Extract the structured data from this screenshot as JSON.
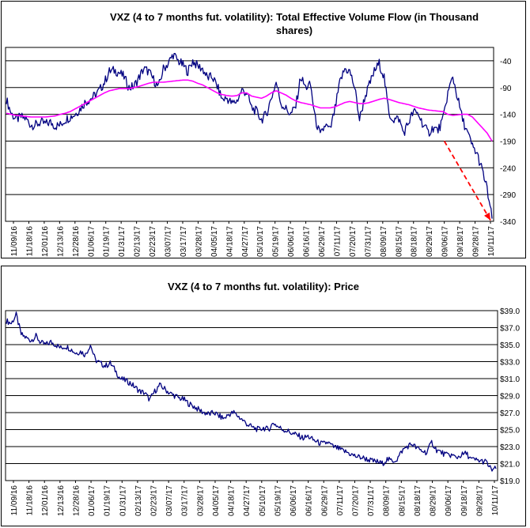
{
  "chart_data": [
    {
      "type": "line",
      "title": "VXZ (4 to 7 months fut. volatility): Total Effective Volume Flow (in Thousand shares)",
      "xlabel": "",
      "ylabel": "",
      "ylim": [
        -340,
        -15
      ],
      "yticks": [
        -40,
        -90,
        -140,
        -190,
        -240,
        -290,
        -340
      ],
      "x_tick_labels": [
        "11/09/16",
        "11/18/16",
        "12/01/16",
        "12/13/16",
        "12/28/16",
        "01/06/17",
        "01/19/17",
        "01/31/17",
        "02/13/17",
        "02/23/17",
        "03/07/17",
        "03/17/17",
        "03/28/17",
        "04/05/17",
        "04/18/17",
        "04/27/17",
        "05/10/17",
        "05/19/17",
        "06/06/17",
        "06/16/17",
        "06/29/17",
        "07/11/17",
        "07/20/17",
        "07/31/17",
        "08/09/17",
        "08/15/17",
        "08/18/17",
        "08/29/17",
        "09/06/17",
        "09/18/17",
        "09/28/17",
        "10/11/17"
      ],
      "grid": true,
      "y_axis_position": "right",
      "series": [
        {
          "style": "flow",
          "color": "#000080",
          "values": [
            -112,
            -138,
            -150,
            -145,
            -148,
            -160,
            -160,
            -155,
            -158,
            -155,
            -162,
            -160,
            -150,
            -145,
            -140,
            -130,
            -118,
            -112,
            -105,
            -95,
            -80,
            -60,
            -58,
            -62,
            -70,
            -90,
            -88,
            -72,
            -55,
            -60,
            -75,
            -90,
            -55,
            -45,
            -28,
            -40,
            -48,
            -60,
            -40,
            -50,
            -55,
            -72,
            -70,
            -88,
            -112,
            -110,
            -120,
            -115,
            -95,
            -100,
            -128,
            -135,
            -150,
            -140,
            -110,
            -80,
            -120,
            -130,
            -140,
            -125,
            -70,
            -90,
            -85,
            -150,
            -180,
            -160,
            -170,
            -130,
            -80,
            -55,
            -60,
            -90,
            -150,
            -110,
            -85,
            -60,
            -45,
            -70,
            -140,
            -150,
            -148,
            -175,
            -155,
            -135,
            -140,
            -160,
            -175,
            -165,
            -170,
            -150,
            -100,
            -70,
            -110,
            -150,
            -175,
            -200,
            -215,
            -245,
            -280,
            -335
          ]
        },
        {
          "style": "trend",
          "color": "#ff00ff",
          "values": [
            -138,
            -140,
            -142,
            -143,
            -144,
            -145,
            -145,
            -145,
            -145,
            -144,
            -143,
            -140,
            -138,
            -135,
            -130,
            -125,
            -120,
            -115,
            -110,
            -105,
            -100,
            -96,
            -94,
            -92,
            -92,
            -92,
            -90,
            -88,
            -85,
            -82,
            -80,
            -80,
            -80,
            -79,
            -78,
            -77,
            -76,
            -76,
            -78,
            -82,
            -85,
            -90,
            -95,
            -100,
            -103,
            -105,
            -106,
            -105,
            -100,
            -100,
            -106,
            -108,
            -110,
            -106,
            -100,
            -96,
            -100,
            -104,
            -110,
            -115,
            -118,
            -120,
            -122,
            -125,
            -128,
            -128,
            -128,
            -126,
            -122,
            -118,
            -116,
            -118,
            -120,
            -120,
            -118,
            -115,
            -112,
            -110,
            -112,
            -115,
            -118,
            -120,
            -122,
            -125,
            -128,
            -130,
            -132,
            -133,
            -134,
            -135,
            -140,
            -142,
            -141,
            -140,
            -140,
            -145,
            -155,
            -165,
            -175,
            -190
          ]
        }
      ],
      "annotations": [
        {
          "type": "arrow",
          "style": "dashed",
          "color": "#ff0000",
          "from_category": "09/06/17",
          "from_value": -190,
          "to_category": "10/11/17",
          "to_value": -338
        }
      ]
    },
    {
      "type": "line",
      "title": "VXZ (4 to 7 months fut. volatility): Price",
      "xlabel": "",
      "ylabel": "",
      "ylim": [
        19.0,
        39.0
      ],
      "yticks": [
        "$19.0",
        "$21.0",
        "$23.0",
        "$25.0",
        "$27.0",
        "$29.0",
        "$31.0",
        "$33.0",
        "$35.0",
        "$37.0",
        "$39.0"
      ],
      "x_tick_labels": [
        "11/09/16",
        "11/18/16",
        "12/01/16",
        "12/13/16",
        "12/28/16",
        "01/06/17",
        "01/19/17",
        "01/31/17",
        "02/13/17",
        "02/23/17",
        "03/07/17",
        "03/17/17",
        "03/28/17",
        "04/05/17",
        "04/18/17",
        "04/27/17",
        "05/10/17",
        "05/19/17",
        "06/06/17",
        "06/16/17",
        "06/29/17",
        "07/11/17",
        "07/20/17",
        "07/31/17",
        "08/09/17",
        "08/15/17",
        "08/18/17",
        "08/29/17",
        "09/06/17",
        "09/18/17",
        "09/28/17",
        "10/11/17"
      ],
      "grid": true,
      "y_axis_position": "right",
      "series": [
        {
          "style": "price",
          "color": "#000080",
          "values": [
            37.8,
            37.5,
            38.5,
            36.2,
            35.8,
            35.5,
            36.0,
            35.2,
            35.0,
            35.3,
            35.0,
            34.6,
            34.8,
            34.5,
            34.0,
            34.2,
            33.8,
            35.0,
            33.2,
            32.8,
            32.5,
            32.8,
            32.0,
            31.0,
            30.8,
            30.5,
            30.0,
            29.5,
            29.3,
            28.5,
            29.5,
            30.2,
            29.8,
            29.3,
            29.0,
            28.7,
            28.5,
            28.0,
            27.7,
            27.3,
            27.0,
            26.8,
            27.0,
            26.6,
            26.3,
            26.8,
            27.0,
            26.5,
            26.0,
            25.5,
            25.2,
            25.0,
            25.2,
            25.0,
            25.8,
            25.3,
            25.0,
            24.8,
            24.5,
            24.3,
            24.0,
            24.2,
            23.8,
            23.5,
            23.3,
            23.5,
            23.0,
            22.8,
            22.5,
            22.3,
            22.0,
            21.8,
            21.7,
            21.5,
            21.3,
            21.2,
            21.0,
            21.5,
            21.3,
            21.5,
            22.5,
            23.0,
            23.3,
            22.8,
            22.5,
            22.3,
            23.5,
            22.6,
            22.3,
            22.0,
            22.0,
            21.7,
            22.0,
            22.2,
            21.5,
            21.4,
            21.3,
            21.2,
            20.3,
            20.4
          ]
        }
      ]
    }
  ]
}
